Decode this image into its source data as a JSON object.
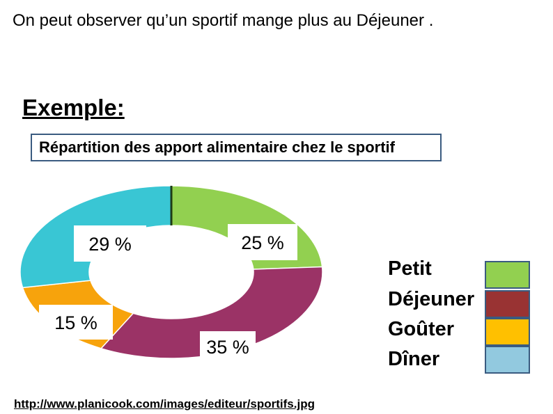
{
  "intro_text": "On peut observer qu’un sportif mange plus au Déjeuner .",
  "example_heading": "Exemple:",
  "source_url": "http://www.planicook.com/images/editeur/sportifs.jpg",
  "chart_data": {
    "type": "pie",
    "title": "Répartition des apport alimentaire chez le sportif",
    "slices": [
      {
        "name": "Petit Déjeuner",
        "value": 25,
        "label": "25 %",
        "color": "#92d050"
      },
      {
        "name": "Déjeuner",
        "value": 35,
        "label": "35 %",
        "color": "#9b3366"
      },
      {
        "name": "Goûter",
        "value": 15,
        "label": "15 %",
        "color": "#f7a30c"
      },
      {
        "name": "Dîner",
        "value": 29,
        "label": "29 %",
        "color": "#39c6d4"
      }
    ],
    "legend": [
      {
        "label": "Petit",
        "color": "#92d050"
      },
      {
        "label": "Déjeuner",
        "color": "#993333"
      },
      {
        "label": "Goûter",
        "color": "#ffc000"
      },
      {
        "label": "Dîner",
        "color": "#92c9df"
      }
    ],
    "legend_position": "right"
  }
}
